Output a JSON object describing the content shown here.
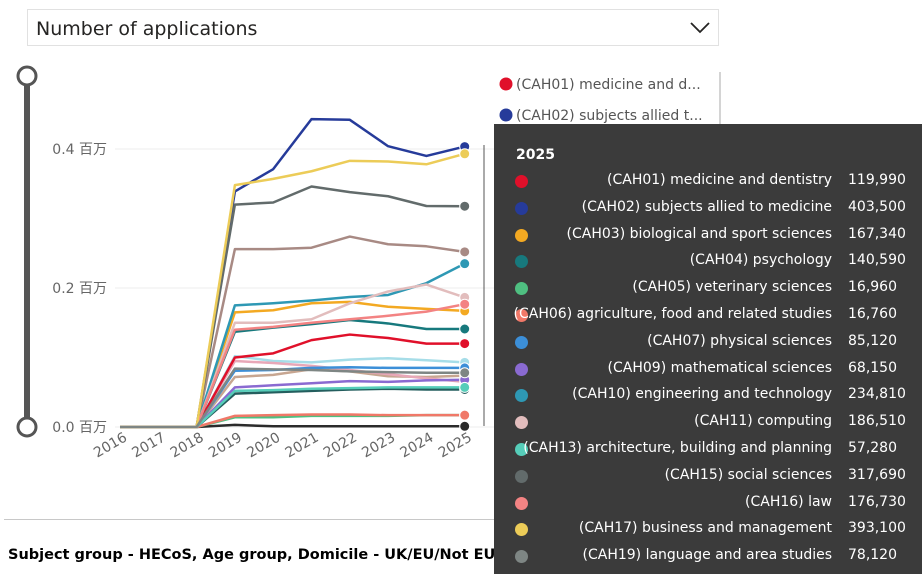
{
  "dropdown": {
    "label": "Number of applications"
  },
  "footer": {
    "text": "Subject group - HECoS, Age group, Domicile - UK/EU/Not EU"
  },
  "chart_data": {
    "type": "line",
    "x": [
      "2016",
      "2017",
      "2018",
      "2019",
      "2020",
      "2021",
      "2022",
      "2023",
      "2024",
      "2025"
    ],
    "yticks": [
      {
        "value": 0,
        "label": "0.0 百万"
      },
      {
        "value": 0.2,
        "label": "0.2 百万"
      },
      {
        "value": 0.4,
        "label": "0.4 百万"
      }
    ],
    "ylim": [
      0,
      0.48
    ],
    "series": [
      {
        "name": "(CAH01) medicine and dentistry",
        "short": "(CAH01) medicine and d...",
        "color": "#e0102a",
        "values": [
          0,
          0,
          0,
          0.1,
          0.106,
          0.125,
          0.133,
          0.128,
          0.12,
          0.12
        ]
      },
      {
        "name": "(CAH02) subjects allied to medicine",
        "short": "(CAH02) subjects allied t...",
        "color": "#263b9a",
        "values": [
          0,
          0,
          0,
          0.339,
          0.371,
          0.443,
          0.442,
          0.404,
          0.39,
          0.4035
        ]
      },
      {
        "name": "(CAH03) biological and sport sciences",
        "short": "(CAH03) biological and s...",
        "color": "#f3a922",
        "values": [
          0,
          0,
          0,
          0.165,
          0.168,
          0.178,
          0.18,
          0.173,
          0.17,
          0.167
        ]
      },
      {
        "name": "(CAH04) psychology",
        "short": "(CAH04) psychology",
        "color": "#17797d",
        "values": [
          0,
          0,
          0,
          0.137,
          0.143,
          0.148,
          0.154,
          0.149,
          0.141,
          0.141
        ]
      },
      {
        "name": "(CAH05) veterinary sciences",
        "short": "(CAH05) veterinary sci...",
        "color": "#4fbf81",
        "values": [
          0,
          0,
          0,
          0.014,
          0.014,
          0.016,
          0.016,
          0.016,
          0.017,
          0.017
        ]
      },
      {
        "name": "(CAH06) agriculture, food and related studies",
        "short": "(CAH06) agriculture, foo...",
        "color": "#f07868",
        "values": [
          0,
          0,
          0,
          0.016,
          0.017,
          0.018,
          0.018,
          0.017,
          0.017,
          0.017
        ]
      },
      {
        "name": "(CAH07) physical sciences",
        "short": "(CAH07) physical sciences",
        "color": "#3c8fd8",
        "values": [
          0,
          0,
          0,
          0.081,
          0.082,
          0.085,
          0.086,
          0.085,
          0.085,
          0.085
        ]
      },
      {
        "name": "(CAH09) mathematical sciences",
        "short": "(CAH09) mathematical sc...",
        "color": "#8a6ad1",
        "values": [
          0,
          0,
          0,
          0.057,
          0.06,
          0.063,
          0.066,
          0.065,
          0.067,
          0.068
        ]
      },
      {
        "name": "(CAH10) engineering and technology",
        "short": "(CAH10) engineering an...",
        "color": "#2e98b4",
        "values": [
          0,
          0,
          0,
          0.175,
          0.178,
          0.182,
          0.187,
          0.19,
          0.207,
          0.235
        ]
      },
      {
        "name": "(CAH11) computing",
        "short": "(CAH11) computing",
        "color": "#e2bdbd",
        "values": [
          0,
          0,
          0,
          0.15,
          0.15,
          0.155,
          0.178,
          0.195,
          0.205,
          0.1865
        ]
      },
      {
        "name": "(CAH13) architecture, building and planning",
        "short": "(CAH13) architecture, bu...",
        "color": "#56cdb9",
        "values": [
          0,
          0,
          0,
          0.052,
          0.053,
          0.055,
          0.056,
          0.057,
          0.057,
          0.057
        ]
      },
      {
        "name": "(CAH15) social sciences",
        "short": "(CAH15) social sciences",
        "color": "#626b6b",
        "values": [
          0,
          0,
          0,
          0.32,
          0.323,
          0.346,
          0.338,
          0.332,
          0.318,
          0.3177
        ]
      },
      {
        "name": "(CAH16) law",
        "short": "(CAH16) law",
        "color": "#f38383",
        "values": [
          0,
          0,
          0,
          0.14,
          0.144,
          0.15,
          0.155,
          0.16,
          0.166,
          0.1767
        ]
      },
      {
        "name": "(CAH17) business and management",
        "short": "(CAH17) business and ...",
        "color": "#eccc58",
        "values": [
          0,
          0,
          0,
          0.348,
          0.357,
          0.368,
          0.383,
          0.382,
          0.378,
          0.3931
        ]
      },
      {
        "name": "(CAH19) language and area studies",
        "short": "(CAH19) language and ar...",
        "color": "#7e8684",
        "values": [
          0,
          0,
          0,
          0.084,
          0.083,
          0.082,
          0.08,
          0.079,
          0.078,
          0.078
        ]
      }
    ],
    "extra_lines": [
      {
        "color": "#a88a84",
        "values": [
          0,
          0,
          0,
          0.256,
          0.256,
          0.258,
          0.274,
          0.263,
          0.26,
          0.252
        ]
      },
      {
        "color": "#a6dde8",
        "values": [
          0,
          0,
          0,
          0.102,
          0.095,
          0.093,
          0.097,
          0.099,
          0.096,
          0.093
        ]
      },
      {
        "color": "#c7a691",
        "values": [
          0,
          0,
          0,
          0.072,
          0.075,
          0.083,
          0.08,
          0.073,
          0.072,
          0.074
        ]
      },
      {
        "color": "#e8a8b8",
        "values": [
          0,
          0,
          0,
          0.095,
          0.092,
          0.088,
          0.082,
          0.076,
          0.07,
          0.065
        ]
      },
      {
        "color": "#245e5e",
        "values": [
          0,
          0,
          0,
          0.048,
          0.05,
          0.052,
          0.054,
          0.055,
          0.054,
          0.054
        ]
      },
      {
        "color": "#2b2b2b",
        "values": [
          0,
          0,
          0,
          0.003,
          0.001,
          0.001,
          0.001,
          0.001,
          0.001,
          0.001
        ]
      }
    ],
    "tooltip": {
      "title": "2025",
      "rows": [
        {
          "label": "(CAH01) medicine and dentistry",
          "value": "119,990",
          "color": "#e0102a"
        },
        {
          "label": "(CAH02) subjects allied to medicine",
          "value": "403,500",
          "color": "#263b9a"
        },
        {
          "label": "(CAH03) biological and sport sciences",
          "value": "167,340",
          "color": "#f3a922"
        },
        {
          "label": "(CAH04) psychology",
          "value": "140,590",
          "color": "#17797d"
        },
        {
          "label": "(CAH05) veterinary sciences",
          "value": "16,960",
          "color": "#4fbf81"
        },
        {
          "label": "(CAH06) agriculture, food and related studies",
          "value": "16,760",
          "color": "#f07868"
        },
        {
          "label": "(CAH07) physical sciences",
          "value": "85,120",
          "color": "#3c8fd8"
        },
        {
          "label": "(CAH09) mathematical sciences",
          "value": "68,150",
          "color": "#8a6ad1"
        },
        {
          "label": "(CAH10) engineering and technology",
          "value": "234,810",
          "color": "#2e98b4"
        },
        {
          "label": "(CAH11) computing",
          "value": "186,510",
          "color": "#e2bdbd"
        },
        {
          "label": "(CAH13) architecture, building and planning",
          "value": "57,280",
          "color": "#56cdb9"
        },
        {
          "label": "(CAH15) social sciences",
          "value": "317,690",
          "color": "#626b6b"
        },
        {
          "label": "(CAH16) law",
          "value": "176,730",
          "color": "#f38383"
        },
        {
          "label": "(CAH17) business and management",
          "value": "393,100",
          "color": "#eccc58"
        },
        {
          "label": "(CAH19) language and area studies",
          "value": "78,120",
          "color": "#7e8684"
        }
      ]
    }
  }
}
